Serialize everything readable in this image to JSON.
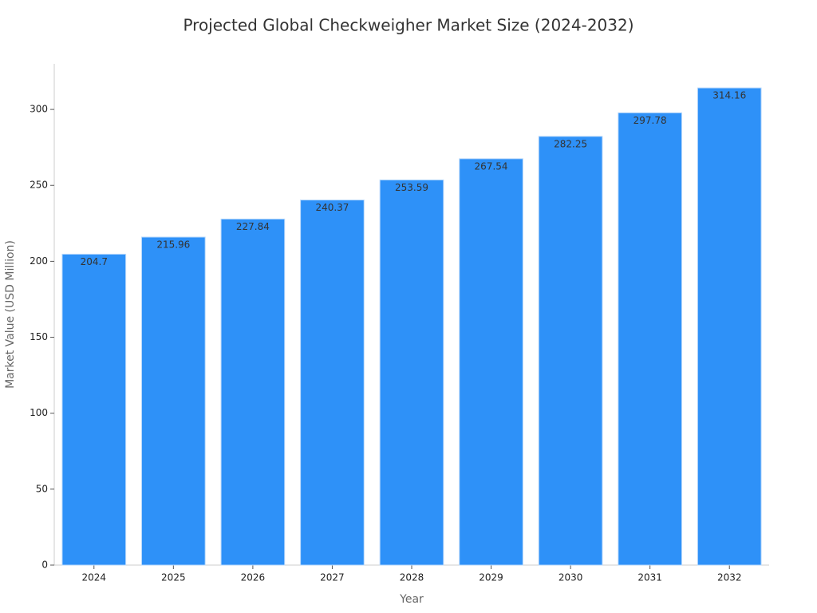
{
  "chart_data": {
    "type": "bar",
    "title": "Projected Global Checkweigher Market Size (2024-2032)",
    "x_label": "Year",
    "y_label": "Market Value (USD Million)",
    "categories": [
      "2024",
      "2025",
      "2026",
      "2027",
      "2028",
      "2029",
      "2030",
      "2031",
      "2032"
    ],
    "values": [
      204.7,
      215.96,
      227.84,
      240.37,
      253.59,
      267.54,
      282.25,
      297.78,
      314.16
    ],
    "color": "#2e91f8",
    "ylim": [
      0,
      330
    ],
    "yticks": [
      0,
      50,
      100,
      150,
      200,
      250,
      300
    ],
    "grid": false
  }
}
